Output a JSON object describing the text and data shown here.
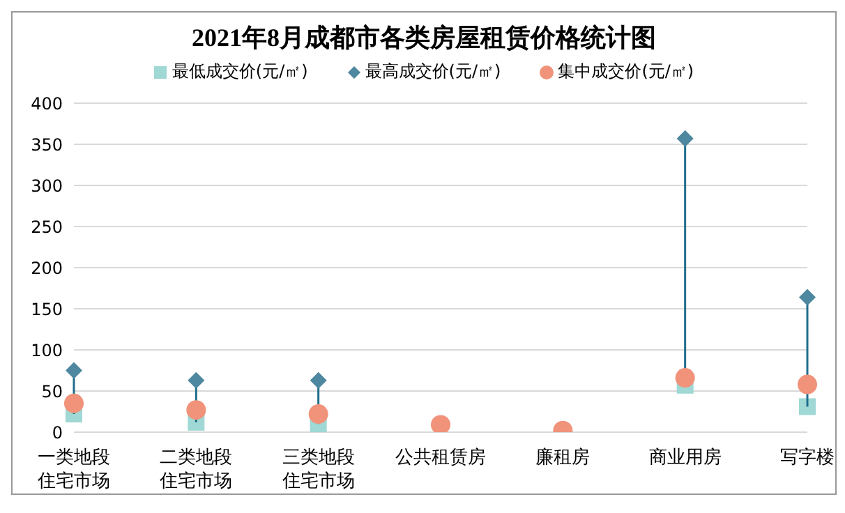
{
  "chart_data": {
    "type": "scatter",
    "title": "2021年8月成都市各类房屋租赁价格统计图",
    "categories": [
      "一类地段住宅市场",
      "二类地段住宅市场",
      "三类地段住宅市场",
      "公共租赁房",
      "廉租房",
      "商业用房",
      "写字楼"
    ],
    "series": [
      {
        "name": "最低成交价(元/㎡)",
        "color": "#9fd8d4",
        "marker": "square",
        "values": [
          22,
          12,
          10,
          null,
          null,
          57,
          31
        ]
      },
      {
        "name": "最高成交价(元/㎡)",
        "color": "#4e87a0",
        "marker": "diamond",
        "values": [
          75,
          63,
          63,
          null,
          null,
          357,
          164
        ]
      },
      {
        "name": "集中成交价(元/㎡)",
        "color": "#f0937a",
        "marker": "circle",
        "values": [
          35,
          27,
          22,
          9,
          2,
          66,
          58
        ]
      }
    ],
    "ylim": [
      0,
      400
    ],
    "yticks": [
      0,
      50,
      100,
      150,
      200,
      250,
      300,
      350,
      400
    ],
    "grid": "y",
    "legend": "top"
  }
}
